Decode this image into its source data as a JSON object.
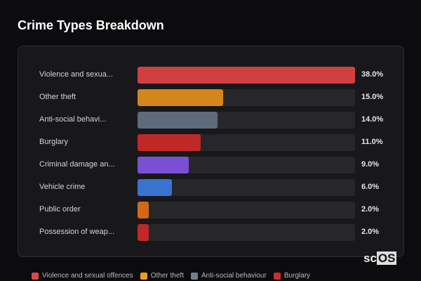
{
  "chart_data": {
    "type": "bar",
    "orientation": "horizontal",
    "title": "Crime Types Breakdown",
    "categories": [
      "Violence and sexua...",
      "Other theft",
      "Anti-social behavi...",
      "Burglary",
      "Criminal damage an...",
      "Vehicle crime",
      "Public order",
      "Possession of weap..."
    ],
    "values": [
      38.0,
      15.0,
      14.0,
      11.0,
      9.0,
      6.0,
      2.0,
      2.0
    ],
    "value_labels": [
      "38.0%",
      "15.0%",
      "14.0%",
      "11.0%",
      "9.0%",
      "6.0%",
      "2.0%",
      "2.0%"
    ],
    "colors": [
      "#d04040",
      "#d4861a",
      "#5f6b7a",
      "#c02828",
      "#7b4fd4",
      "#3a72d0",
      "#d4661a",
      "#c02828"
    ],
    "xlim": [
      0,
      38
    ],
    "legend": [
      {
        "label": "Violence and sexual offences",
        "color": "#e04848"
      },
      {
        "label": "Other theft",
        "color": "#f0a010"
      },
      {
        "label": "Anti-social behaviour",
        "color": "#708090"
      },
      {
        "label": "Burglary",
        "color": "#d42a2a"
      }
    ],
    "legend_position": "bottom"
  },
  "logo": {
    "a": "sc",
    "b": "OS"
  }
}
